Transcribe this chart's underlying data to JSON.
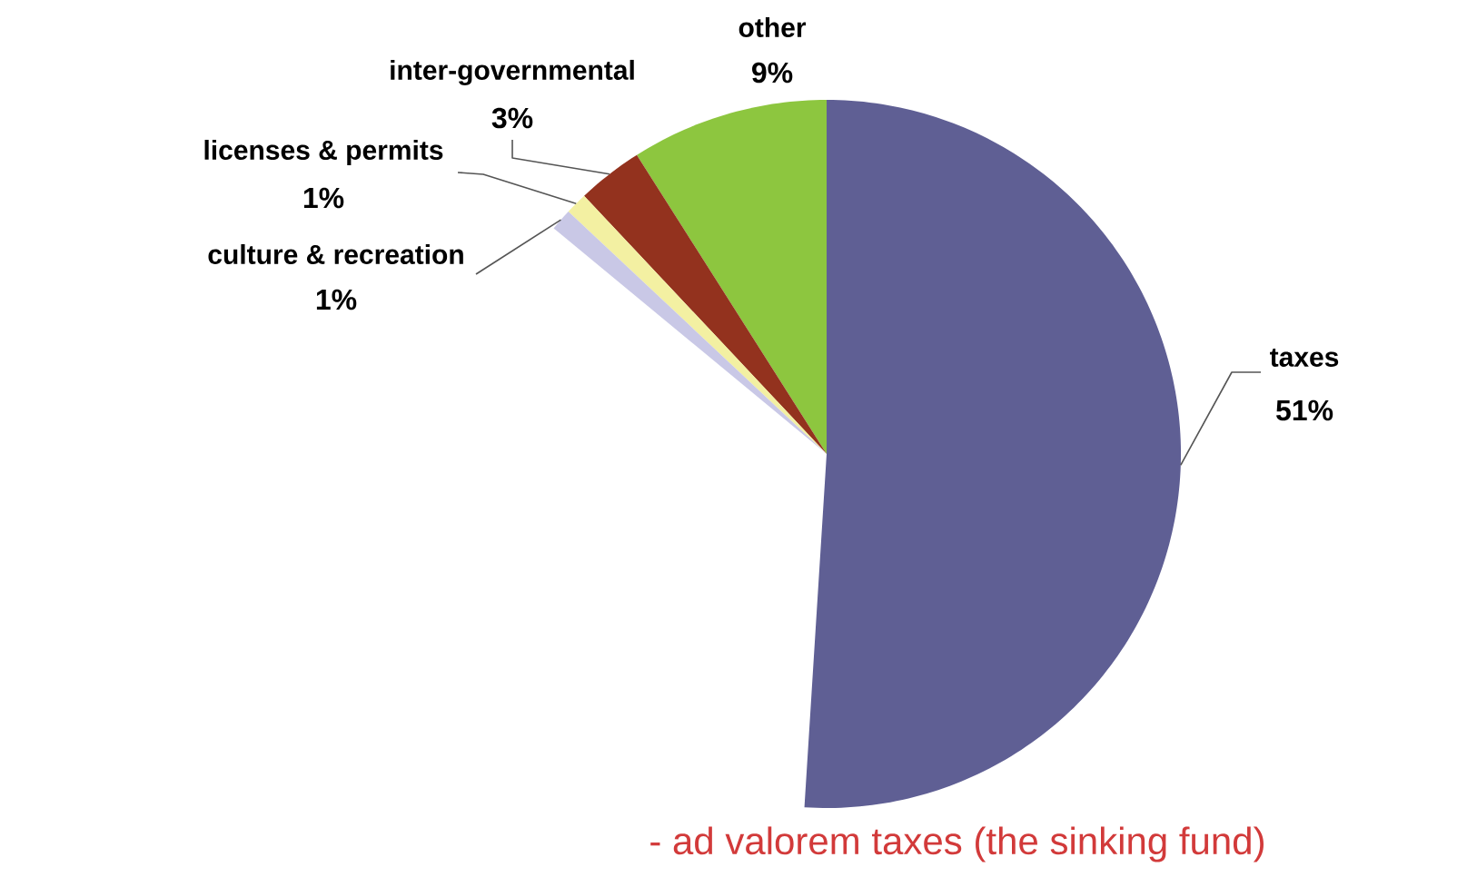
{
  "chart_data": {
    "type": "pie",
    "categories": [
      "taxes",
      "other",
      "inter-governmental",
      "licenses & permits",
      "culture & recreation"
    ],
    "values": [
      51,
      9,
      3,
      1,
      1
    ],
    "colors": [
      "#5f5f94",
      "#8dc63f",
      "#93321e",
      "#f3f0a2",
      "#c9c8e6"
    ],
    "value_labels": [
      "51%",
      "9%",
      "3%",
      "1%",
      "1%"
    ],
    "annotations": [
      "- ad valorem taxes (the sinking fund)"
    ]
  }
}
